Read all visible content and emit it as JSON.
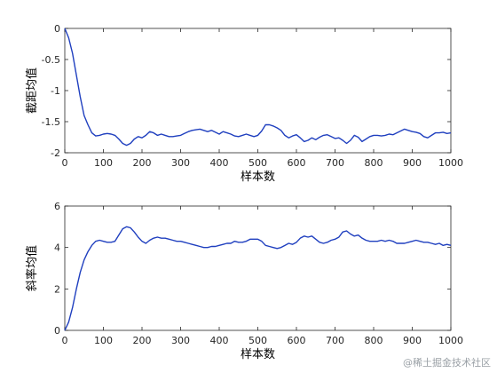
{
  "watermark": "@稀土掘金技术社区",
  "colors": {
    "line": "#1f3fbf",
    "axis": "#262626",
    "background": "#ffffff"
  },
  "chart_data": [
    {
      "type": "line",
      "title": "",
      "xlabel": "样本数",
      "ylabel": "截距均值",
      "xlim": [
        0,
        1000
      ],
      "ylim": [
        -2,
        0
      ],
      "xticks": [
        0,
        100,
        200,
        300,
        400,
        500,
        600,
        700,
        800,
        900,
        1000
      ],
      "yticks": [
        -2,
        -1.5,
        -1,
        -0.5,
        0
      ],
      "ytick_labels": [
        "-2",
        "-1.5",
        "-1",
        "-0.5",
        "0"
      ],
      "grid": false,
      "series": [
        {
          "x": [
            0,
            10,
            20,
            30,
            40,
            50,
            60,
            70,
            80,
            90,
            100,
            110,
            120,
            130,
            140,
            150,
            160,
            170,
            180,
            190,
            200,
            210,
            220,
            230,
            240,
            250,
            260,
            270,
            280,
            290,
            300,
            310,
            320,
            330,
            340,
            350,
            360,
            370,
            380,
            390,
            400,
            410,
            420,
            430,
            440,
            450,
            460,
            470,
            480,
            490,
            500,
            510,
            520,
            530,
            540,
            550,
            560,
            570,
            580,
            590,
            600,
            610,
            620,
            630,
            640,
            650,
            660,
            670,
            680,
            690,
            700,
            710,
            720,
            730,
            740,
            750,
            760,
            770,
            780,
            790,
            800,
            810,
            820,
            830,
            840,
            850,
            860,
            870,
            880,
            890,
            900,
            910,
            920,
            930,
            940,
            950,
            960,
            970,
            980,
            990,
            1000
          ],
          "y": [
            0,
            -0.15,
            -0.4,
            -0.75,
            -1.1,
            -1.4,
            -1.55,
            -1.68,
            -1.73,
            -1.72,
            -1.7,
            -1.69,
            -1.7,
            -1.72,
            -1.78,
            -1.85,
            -1.88,
            -1.85,
            -1.78,
            -1.74,
            -1.76,
            -1.72,
            -1.66,
            -1.68,
            -1.72,
            -1.7,
            -1.72,
            -1.74,
            -1.74,
            -1.73,
            -1.72,
            -1.69,
            -1.66,
            -1.64,
            -1.63,
            -1.62,
            -1.64,
            -1.66,
            -1.64,
            -1.67,
            -1.7,
            -1.66,
            -1.68,
            -1.7,
            -1.73,
            -1.74,
            -1.72,
            -1.7,
            -1.72,
            -1.74,
            -1.72,
            -1.65,
            -1.55,
            -1.55,
            -1.57,
            -1.6,
            -1.64,
            -1.72,
            -1.76,
            -1.73,
            -1.71,
            -1.76,
            -1.82,
            -1.8,
            -1.76,
            -1.79,
            -1.75,
            -1.72,
            -1.71,
            -1.74,
            -1.77,
            -1.76,
            -1.8,
            -1.85,
            -1.8,
            -1.72,
            -1.75,
            -1.82,
            -1.78,
            -1.74,
            -1.72,
            -1.72,
            -1.73,
            -1.72,
            -1.7,
            -1.71,
            -1.68,
            -1.65,
            -1.62,
            -1.64,
            -1.66,
            -1.67,
            -1.69,
            -1.74,
            -1.76,
            -1.72,
            -1.68,
            -1.68,
            -1.67,
            -1.69,
            -1.68
          ]
        }
      ]
    },
    {
      "type": "line",
      "title": "",
      "xlabel": "样本数",
      "ylabel": "斜率均值",
      "xlim": [
        0,
        1000
      ],
      "ylim": [
        0,
        6
      ],
      "xticks": [
        0,
        100,
        200,
        300,
        400,
        500,
        600,
        700,
        800,
        900,
        1000
      ],
      "yticks": [
        0,
        2,
        4,
        6
      ],
      "ytick_labels": [
        "0",
        "2",
        "4",
        "6"
      ],
      "grid": false,
      "series": [
        {
          "x": [
            0,
            10,
            20,
            30,
            40,
            50,
            60,
            70,
            80,
            90,
            100,
            110,
            120,
            130,
            140,
            150,
            160,
            170,
            180,
            190,
            200,
            210,
            220,
            230,
            240,
            250,
            260,
            270,
            280,
            290,
            300,
            310,
            320,
            330,
            340,
            350,
            360,
            370,
            380,
            390,
            400,
            410,
            420,
            430,
            440,
            450,
            460,
            470,
            480,
            490,
            500,
            510,
            520,
            530,
            540,
            550,
            560,
            570,
            580,
            590,
            600,
            610,
            620,
            630,
            640,
            650,
            660,
            670,
            680,
            690,
            700,
            710,
            720,
            730,
            740,
            750,
            760,
            770,
            780,
            790,
            800,
            810,
            820,
            830,
            840,
            850,
            860,
            870,
            880,
            890,
            900,
            910,
            920,
            930,
            940,
            950,
            960,
            970,
            980,
            990,
            1000
          ],
          "y": [
            0,
            0.4,
            1.1,
            2.0,
            2.8,
            3.4,
            3.8,
            4.1,
            4.3,
            4.35,
            4.3,
            4.25,
            4.25,
            4.3,
            4.6,
            4.9,
            5.0,
            4.95,
            4.75,
            4.5,
            4.3,
            4.2,
            4.35,
            4.45,
            4.5,
            4.45,
            4.45,
            4.4,
            4.35,
            4.3,
            4.3,
            4.25,
            4.2,
            4.15,
            4.1,
            4.05,
            4.0,
            4.0,
            4.05,
            4.05,
            4.1,
            4.15,
            4.2,
            4.2,
            4.3,
            4.25,
            4.25,
            4.3,
            4.4,
            4.4,
            4.4,
            4.3,
            4.1,
            4.05,
            4.0,
            3.95,
            4.0,
            4.1,
            4.2,
            4.15,
            4.25,
            4.45,
            4.55,
            4.5,
            4.55,
            4.4,
            4.25,
            4.2,
            4.25,
            4.35,
            4.4,
            4.5,
            4.75,
            4.8,
            4.65,
            4.55,
            4.6,
            4.45,
            4.35,
            4.3,
            4.3,
            4.3,
            4.35,
            4.3,
            4.35,
            4.3,
            4.2,
            4.2,
            4.2,
            4.25,
            4.3,
            4.35,
            4.3,
            4.25,
            4.25,
            4.2,
            4.15,
            4.2,
            4.1,
            4.15,
            4.1
          ]
        }
      ]
    }
  ]
}
